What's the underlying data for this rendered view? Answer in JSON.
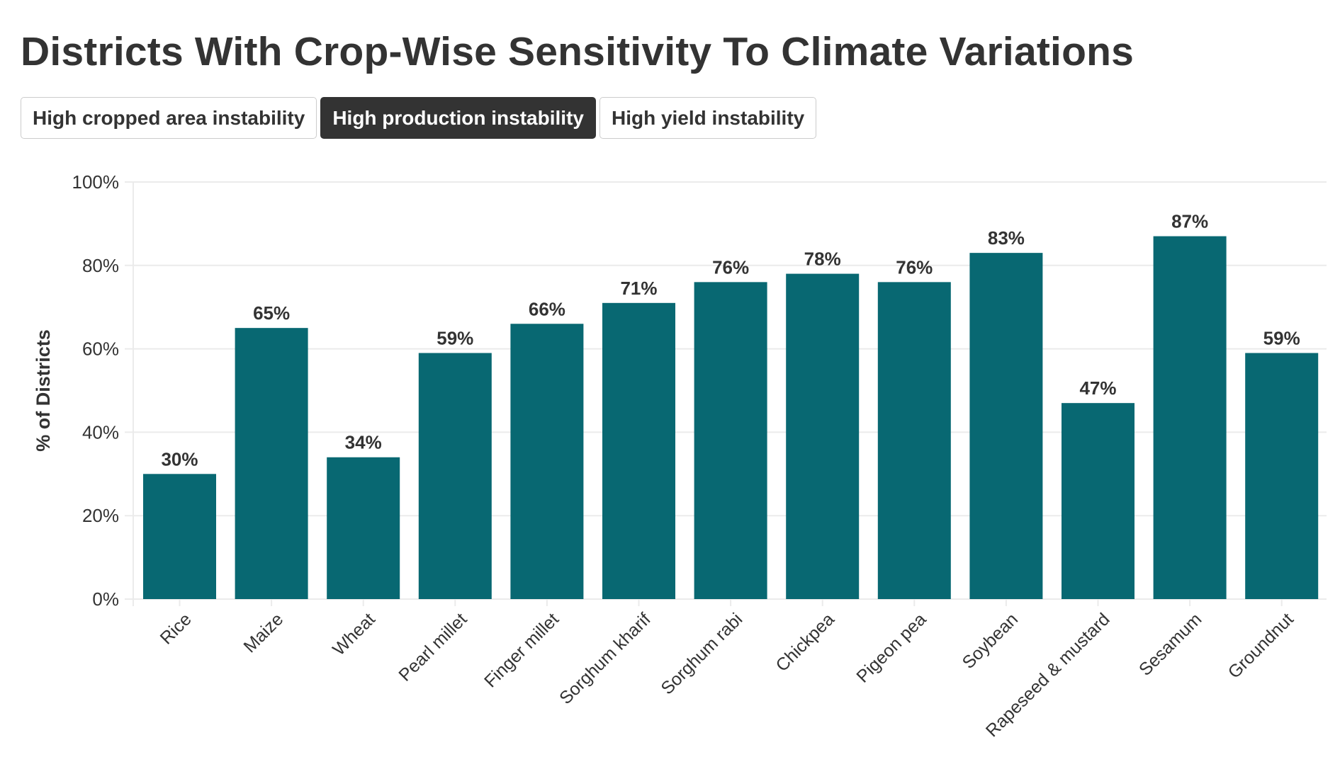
{
  "title": "Districts With Crop-Wise Sensitivity To Climate Variations",
  "tabs": [
    {
      "label": "High cropped area instability",
      "active": false
    },
    {
      "label": "High production instability",
      "active": true
    },
    {
      "label": "High yield instability",
      "active": false
    }
  ],
  "chart_data": {
    "type": "bar",
    "title": "Districts With Crop-Wise Sensitivity To Climate Variations",
    "xlabel": "",
    "ylabel": "% of Districts",
    "ylim": [
      0,
      100
    ],
    "yticks": [
      "0%",
      "20%",
      "40%",
      "60%",
      "80%",
      "100%"
    ],
    "grid": true,
    "categories": [
      "Rice",
      "Maize",
      "Wheat",
      "Pearl millet",
      "Finger millet",
      "Sorghum kharif",
      "Sorghum rabi",
      "Chickpea",
      "Pigeon pea",
      "Soybean",
      "Rapeseed & mustard",
      "Sesamum",
      "Groundnut"
    ],
    "values": [
      30,
      65,
      34,
      59,
      66,
      71,
      76,
      78,
      76,
      83,
      47,
      87,
      59
    ],
    "labels": [
      "30%",
      "65%",
      "34%",
      "59%",
      "66%",
      "71%",
      "76%",
      "78%",
      "76%",
      "83%",
      "47%",
      "87%",
      "59%"
    ],
    "bar_color": "#086872"
  }
}
